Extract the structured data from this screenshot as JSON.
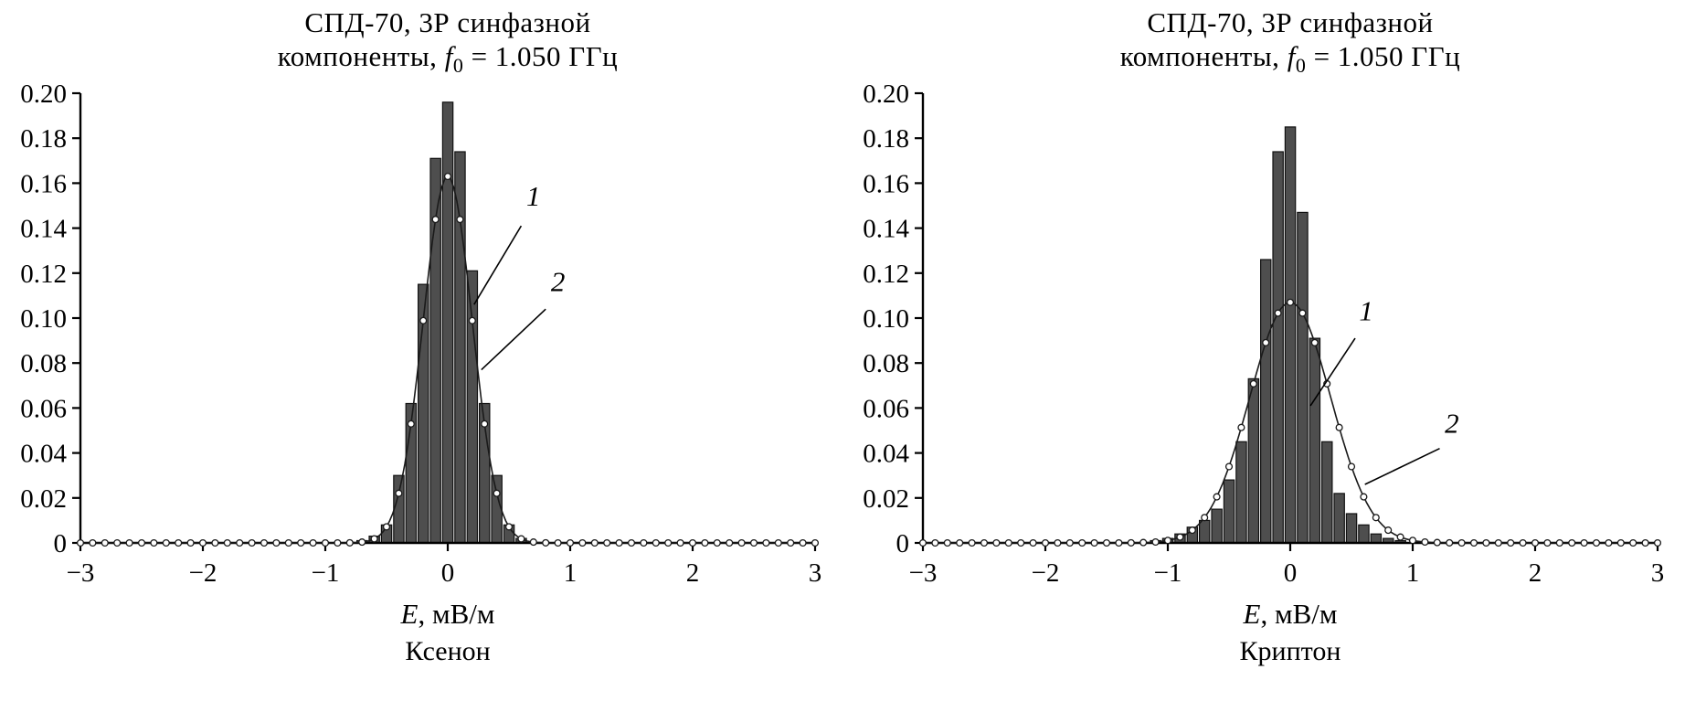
{
  "figure": {
    "background": "#ffffff",
    "bar_fill": "#4e4e4e",
    "bar_edge": "#111111",
    "curve_color": "#1a1a1a",
    "axis_color": "#000000"
  },
  "chart_data": [
    {
      "id": "xenon",
      "type": "bar",
      "title": "СПД-70, 3Р синфазной компоненты, f0 = 1.050 ГГц",
      "title_lines": {
        "line1": "СПД-70, 3Р синфазной",
        "line2_pre": "компоненты, ",
        "freq_var": "f",
        "freq_sub": "0",
        "line2_post": " = 1.050 ГГц"
      },
      "xlabel": {
        "variable": "E",
        "rest": ", мВ/м"
      },
      "sublabel": "Ксенон",
      "xlim": [
        -3,
        3
      ],
      "ylim": [
        0,
        0.2
      ],
      "grid": false,
      "legend": "none",
      "x_ticks": [
        -3,
        -2,
        -1,
        0,
        1,
        2,
        3
      ],
      "x_tick_labels": [
        "−3",
        "−2",
        "−1",
        "0",
        "1",
        "2",
        "3"
      ],
      "y_ticks": [
        0,
        0.02,
        0.04,
        0.06,
        0.08,
        0.1,
        0.12,
        0.14,
        0.16,
        0.18,
        0.2
      ],
      "y_tick_labels": [
        "0",
        "0.02",
        "0.04",
        "0.06",
        "0.08",
        "0.10",
        "0.12",
        "0.14",
        "0.16",
        "0.18",
        "0.20"
      ],
      "bars": {
        "bin_width": 0.1,
        "centers": [
          -0.7,
          -0.6,
          -0.5,
          -0.4,
          -0.3,
          -0.2,
          -0.1,
          0.0,
          0.1,
          0.2,
          0.3,
          0.4,
          0.5,
          0.6
        ],
        "heights": [
          0.001,
          0.003,
          0.008,
          0.03,
          0.062,
          0.115,
          0.171,
          0.196,
          0.174,
          0.121,
          0.062,
          0.03,
          0.008,
          0.002
        ]
      },
      "curve": {
        "name": "gaussian-fit",
        "amplitude": 0.163,
        "mean": 0.0,
        "sigma": 0.2,
        "marker_step": 0.1
      },
      "annotations": [
        {
          "label": "1",
          "label_x": 0.7,
          "label_y": 0.15,
          "line": [
            0.6,
            0.141,
            0.215,
            0.106
          ]
        },
        {
          "label": "2",
          "label_x": 0.9,
          "label_y": 0.112,
          "line": [
            0.8,
            0.104,
            0.275,
            0.077
          ]
        }
      ]
    },
    {
      "id": "krypton",
      "type": "bar",
      "title": "СПД-70, 3Р синфазной компоненты, f0 = 1.050 ГГц",
      "title_lines": {
        "line1": "СПД-70, 3Р синфазной",
        "line2_pre": "компоненты, ",
        "freq_var": "f",
        "freq_sub": "0",
        "line2_post": " = 1.050 ГГц"
      },
      "xlabel": {
        "variable": "E",
        "rest": ", мВ/м"
      },
      "sublabel": "Криптон",
      "xlim": [
        -3,
        3
      ],
      "ylim": [
        0,
        0.2
      ],
      "grid": false,
      "legend": "none",
      "x_ticks": [
        -3,
        -2,
        -1,
        0,
        1,
        2,
        3
      ],
      "x_tick_labels": [
        "−3",
        "−2",
        "−1",
        "0",
        "1",
        "2",
        "3"
      ],
      "y_ticks": [
        0,
        0.02,
        0.04,
        0.06,
        0.08,
        0.1,
        0.12,
        0.14,
        0.16,
        0.18,
        0.2
      ],
      "y_tick_labels": [
        "0",
        "0.02",
        "0.04",
        "0.06",
        "0.08",
        "0.10",
        "0.12",
        "0.14",
        "0.16",
        "0.18",
        "0.20"
      ],
      "bars": {
        "bin_width": 0.1,
        "centers": [
          -1.1,
          -1.0,
          -0.9,
          -0.8,
          -0.7,
          -0.6,
          -0.5,
          -0.4,
          -0.3,
          -0.2,
          -0.1,
          0.0,
          0.1,
          0.2,
          0.3,
          0.4,
          0.5,
          0.6,
          0.7,
          0.8,
          0.9
        ],
        "heights": [
          0.001,
          0.002,
          0.004,
          0.007,
          0.01,
          0.015,
          0.028,
          0.045,
          0.073,
          0.126,
          0.174,
          0.185,
          0.147,
          0.091,
          0.045,
          0.022,
          0.013,
          0.008,
          0.004,
          0.002,
          0.001
        ]
      },
      "curve": {
        "name": "gaussian-fit",
        "amplitude": 0.107,
        "mean": 0.0,
        "sigma": 0.33,
        "marker_step": 0.1
      },
      "annotations": [
        {
          "label": "1",
          "label_x": 0.62,
          "label_y": 0.099,
          "line": [
            0.53,
            0.091,
            0.165,
            0.061
          ]
        },
        {
          "label": "2",
          "label_x": 1.32,
          "label_y": 0.049,
          "line": [
            1.22,
            0.042,
            0.61,
            0.026
          ]
        }
      ]
    }
  ]
}
